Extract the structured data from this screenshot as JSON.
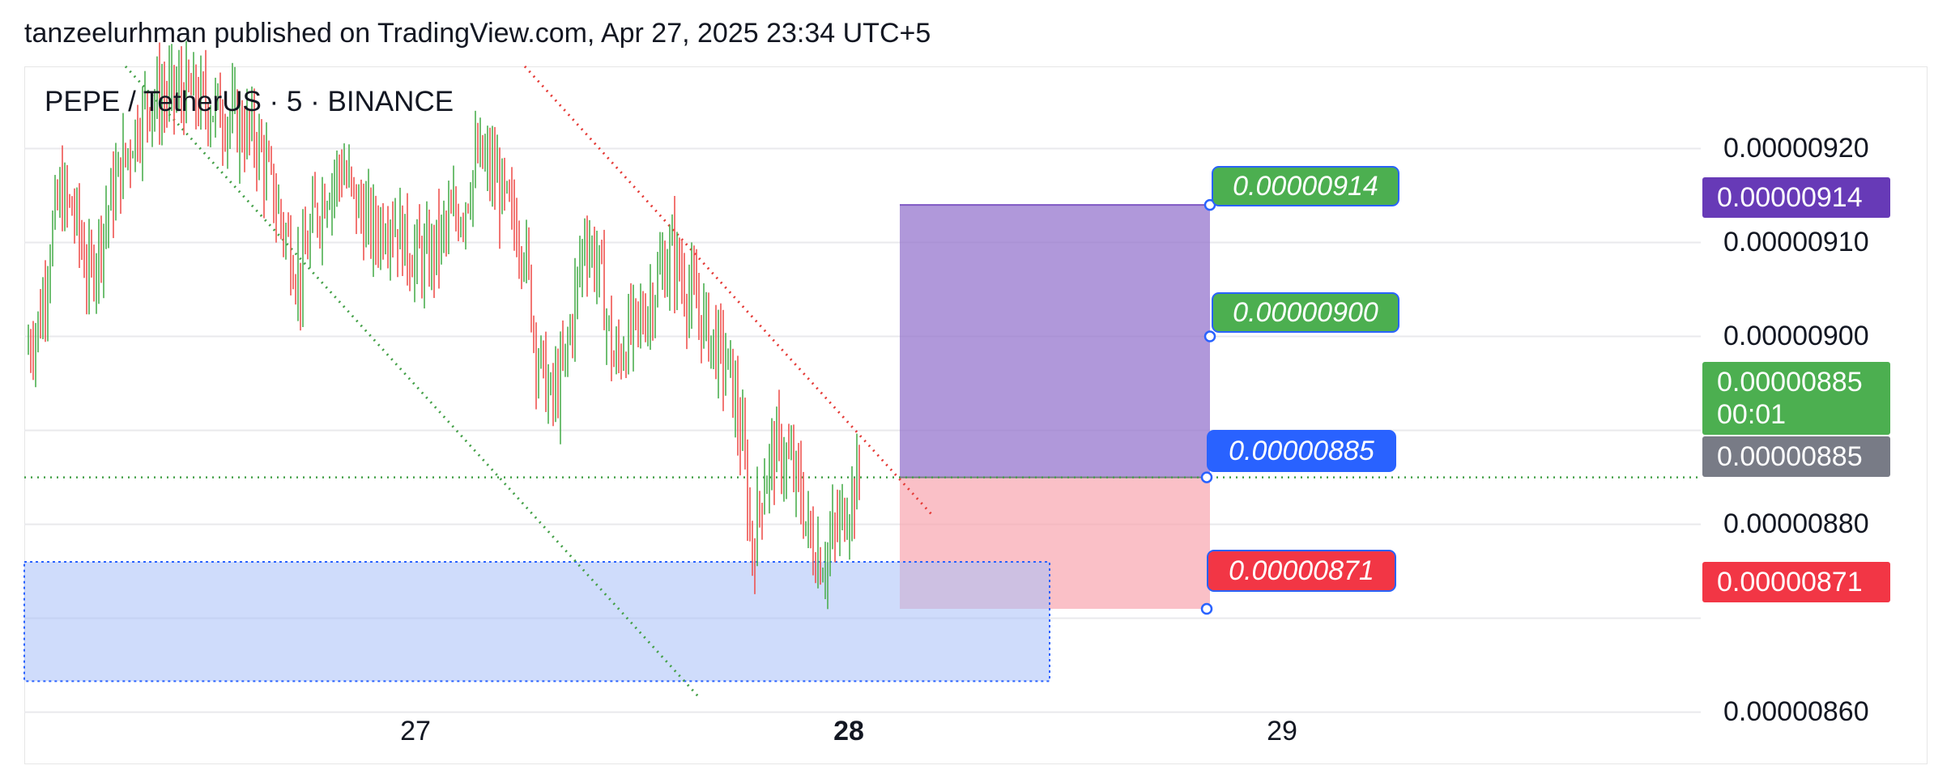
{
  "header": {
    "publisher": "tanzeelurhman published on TradingView.com, Apr 27, 2025 23:34 UTC+5"
  },
  "chart_data": {
    "type": "candlestick",
    "title": "PEPE / TetherUS · 5 · BINANCE",
    "symbol": "PEPE / TetherUS",
    "interval": "5",
    "exchange": "BINANCE",
    "y_ticks": [
      "0.00000920",
      "0.00000910",
      "0.00000900",
      "0.00000880",
      "0.00000860"
    ],
    "y_tick_values": [
      9.2e-06,
      9.1e-06,
      9e-06,
      8.8e-06,
      8.6e-06
    ],
    "ylim": [
      8.5445e-06,
      9.2875e-06
    ],
    "x_ticks": [
      {
        "label": "27",
        "bold": false
      },
      {
        "label": "28",
        "bold": true
      },
      {
        "label": "29",
        "bold": false
      }
    ],
    "grid": true,
    "colors": {
      "up": "#4caf50",
      "down": "#ef5350",
      "grid": "#e9e9ec",
      "profit_zone": "#9575cd",
      "loss_zone": "#f8a5af",
      "support_zone": "#a7c0f8",
      "support_border": "#2962ff",
      "green_trendline": "#43a047",
      "red_trendline": "#e53935"
    },
    "position": {
      "type": "long",
      "entry": "0.00000885",
      "entry_value": 8.85e-06,
      "target_2": "0.00000914",
      "target_2_value": 9.14e-06,
      "target_1": "0.00000900",
      "target_1_value": 9e-06,
      "stop": "0.00000871",
      "stop_value": 8.71e-06
    },
    "support_zone": {
      "top": 8.76e-06,
      "bottom": 8.633e-06
    },
    "axis_tags": {
      "target": "0.00000914",
      "last_price": "0.00000885",
      "countdown": "00:01",
      "current": "0.00000885",
      "stop": "0.00000871"
    },
    "price_path": [
      [
        0.0,
        8.985e-06
      ],
      [
        0.6,
        9.02e-06
      ],
      [
        1.0,
        9.1e-06
      ],
      [
        1.4,
        9.15e-06
      ],
      [
        2.0,
        9.13e-06
      ],
      [
        2.6,
        9.06e-06
      ],
      [
        3.2,
        9.12e-06
      ],
      [
        3.8,
        9.17e-06
      ],
      [
        4.5,
        9.22e-06
      ],
      [
        5.0,
        9.25e-06
      ],
      [
        6.5,
        9.26e-06
      ],
      [
        8.0,
        9.24e-06
      ],
      [
        9.5,
        9.21e-06
      ],
      [
        10.2,
        9.15e-06
      ],
      [
        10.8,
        9.1e-06
      ],
      [
        11.3,
        9.06e-06
      ],
      [
        11.8,
        9.12e-06
      ],
      [
        12.4,
        9.16e-06
      ],
      [
        13.0,
        9.18e-06
      ],
      [
        13.6,
        9.14e-06
      ],
      [
        14.3,
        9.11e-06
      ],
      [
        15.0,
        9.13e-06
      ],
      [
        15.8,
        9.09e-06
      ],
      [
        16.5,
        9.08e-06
      ],
      [
        17.2,
        9.11e-06
      ],
      [
        18.0,
        9.14e-06
      ],
      [
        18.6,
        9.19e-06
      ],
      [
        19.3,
        9.17e-06
      ],
      [
        19.9,
        9.13e-06
      ],
      [
        20.5,
        9.1e-06
      ],
      [
        21.0,
        8.99e-06
      ],
      [
        21.6,
        8.93e-06
      ],
      [
        22.1,
        8.96e-06
      ],
      [
        22.6,
        9.04e-06
      ],
      [
        23.0,
        9.11e-06
      ],
      [
        23.6,
        9.07e-06
      ],
      [
        24.2,
        8.97e-06
      ],
      [
        24.8,
        9e-06
      ],
      [
        25.4,
        9.02e-06
      ],
      [
        26.0,
        9.06e-06
      ],
      [
        26.6,
        9.09e-06
      ],
      [
        27.2,
        9.05e-06
      ],
      [
        27.8,
        9.02e-06
      ],
      [
        28.4,
        8.99e-06
      ],
      [
        29.0,
        8.96e-06
      ],
      [
        29.5,
        8.88e-06
      ],
      [
        29.9,
        8.77e-06
      ],
      [
        30.3,
        8.84e-06
      ],
      [
        30.8,
        8.88e-06
      ],
      [
        31.3,
        8.87e-06
      ],
      [
        31.8,
        8.84e-06
      ],
      [
        32.3,
        8.78e-06
      ],
      [
        32.8,
        8.76e-06
      ],
      [
        33.3,
        8.79e-06
      ],
      [
        33.8,
        8.82e-06
      ],
      [
        34.3,
        8.85e-06
      ]
    ]
  }
}
